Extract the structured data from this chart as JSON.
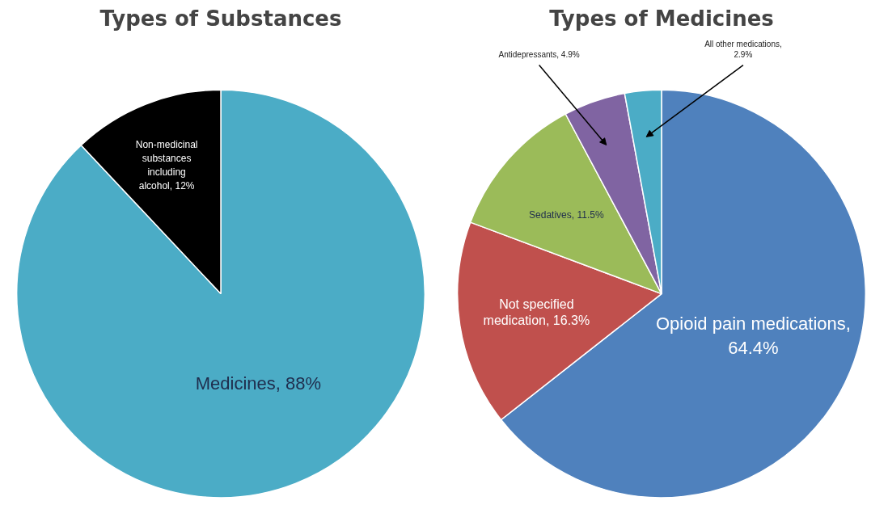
{
  "chart_data": [
    {
      "type": "pie",
      "title": "Types of Substances",
      "categories": [
        "Medicines, 88%",
        "Non-medicinal substances including alcohol, 12%"
      ],
      "values": [
        88,
        12
      ],
      "colors": [
        "#4bacc6",
        "#000000"
      ],
      "legend": false
    },
    {
      "type": "pie",
      "title": "Types of Medicines",
      "categories": [
        "Opioid pain medications, 64.4%",
        "Not specified medication, 16.3%",
        "Sedatives, 11.5%",
        "Antidepressants, 4.9%",
        "All other medications, 2.9%"
      ],
      "values": [
        64.4,
        16.3,
        11.5,
        4.9,
        2.9
      ],
      "colors": [
        "#4f81bd",
        "#c0504d",
        "#9bbb59",
        "#8064a2",
        "#4bacc6"
      ],
      "legend": false
    }
  ]
}
